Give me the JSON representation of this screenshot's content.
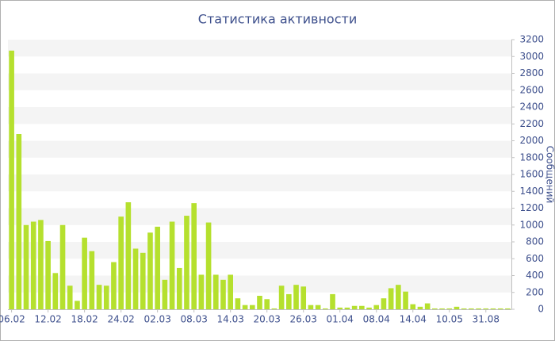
{
  "chart_data": {
    "type": "bar",
    "title": "Статистика активности",
    "y_axis_label": "Сообщений",
    "y_axis_side": "right",
    "categories": [
      "06.02",
      null,
      null,
      null,
      null,
      "12.02",
      null,
      null,
      null,
      null,
      "18.02",
      null,
      null,
      null,
      null,
      "24.02",
      null,
      null,
      null,
      null,
      "02.03",
      null,
      null,
      null,
      null,
      "08.03",
      null,
      null,
      null,
      null,
      "14.03",
      null,
      null,
      null,
      null,
      "20.03",
      null,
      null,
      null,
      null,
      "26.03",
      null,
      null,
      null,
      null,
      "01.04",
      null,
      null,
      null,
      null,
      "08.04",
      null,
      null,
      null,
      null,
      "14.04",
      null,
      null,
      null,
      null,
      "10.05",
      null,
      null,
      null,
      null,
      "31.08",
      null,
      null,
      null
    ],
    "values": [
      3070,
      2080,
      1000,
      1040,
      1060,
      810,
      430,
      1000,
      280,
      100,
      850,
      690,
      290,
      280,
      560,
      1100,
      1270,
      720,
      670,
      910,
      980,
      350,
      1040,
      490,
      1110,
      1260,
      410,
      1030,
      410,
      350,
      410,
      130,
      50,
      50,
      160,
      120,
      10,
      280,
      180,
      290,
      270,
      50,
      50,
      10,
      180,
      20,
      20,
      40,
      40,
      20,
      50,
      130,
      250,
      290,
      210,
      60,
      30,
      70,
      10,
      10,
      10,
      30,
      10,
      10,
      10,
      10,
      10,
      10,
      10
    ],
    "color": "#b5e02e",
    "ylim": [
      0,
      3200
    ],
    "yticks": [
      0,
      200,
      400,
      600,
      800,
      1000,
      1200,
      1400,
      1600,
      1800,
      2000,
      2200,
      2400,
      2600,
      2800,
      3000,
      3200
    ],
    "grid": "bands"
  }
}
